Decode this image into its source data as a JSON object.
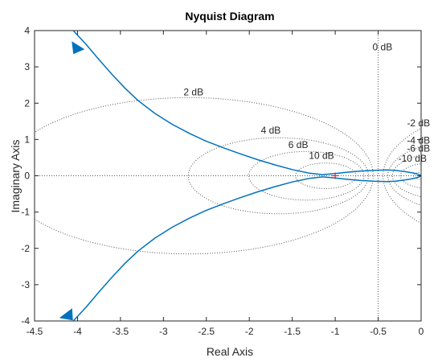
{
  "chart_data": {
    "type": "line",
    "title": "Nyquist Diagram",
    "xlabel": "Real Axis",
    "ylabel": "Imaginary Axis",
    "xlim": [
      -4.5,
      0
    ],
    "ylim": [
      -4,
      4
    ],
    "xticks": [
      -4.5,
      -4,
      -3.5,
      -3,
      -2.5,
      -2,
      -1.5,
      -1,
      -0.5,
      0
    ],
    "xtick_labels": [
      "-4.5",
      "-4",
      "-3.5",
      "-3",
      "-2.5",
      "-2",
      "-1.5",
      "-1",
      "-0.5",
      "0"
    ],
    "yticks": [
      -4,
      -3,
      -2,
      -1,
      0,
      1,
      2,
      3,
      4
    ],
    "ytick_labels": [
      "-4",
      "-3",
      "-2",
      "-1",
      "0",
      "1",
      "2",
      "3",
      "4"
    ],
    "grid": "M-circles (dotted)",
    "colors": {
      "curve": "#0072bd",
      "grid": "#555555",
      "critical_point": "#ff0000",
      "axes": "#262626"
    },
    "critical_point": {
      "x": -1,
      "y": 0
    },
    "m_circle_labels": [
      {
        "label": "0 dB",
        "x": -0.45,
        "y": 3.55
      },
      {
        "label": "2 dB",
        "x": -2.65,
        "y": 2.3
      },
      {
        "label": "4 dB",
        "x": -1.75,
        "y": 1.25
      },
      {
        "label": "6 dB",
        "x": -1.43,
        "y": 0.85
      },
      {
        "label": "10 dB",
        "x": -1.16,
        "y": 0.55
      },
      {
        "label": "-2 dB",
        "x": -0.03,
        "y": 1.45
      },
      {
        "label": "-4 dB",
        "x": -0.03,
        "y": 0.98
      },
      {
        "label": "-6 dB",
        "x": -0.03,
        "y": 0.75
      },
      {
        "label": "-10 dB",
        "x": -0.1,
        "y": 0.48
      }
    ],
    "series": [
      {
        "x": [
          -4.05,
          -3.9,
          -3.75,
          -3.6,
          -3.45,
          -3.3,
          -3.1,
          -2.9,
          -2.7,
          -2.5,
          -2.3,
          -2.1,
          -1.9,
          -1.7,
          -1.5,
          -1.3,
          -1.15,
          -1.0,
          -0.85,
          -0.7,
          -0.55,
          -0.4,
          -0.3,
          -0.2,
          -0.1,
          -0.03,
          0
        ],
        "y": [
          4.0,
          3.62,
          3.2,
          2.8,
          2.42,
          2.08,
          1.72,
          1.42,
          1.17,
          0.95,
          0.77,
          0.6,
          0.44,
          0.3,
          0.17,
          0.07,
          0.03,
          0.06,
          0.1,
          0.13,
          0.15,
          0.16,
          0.15,
          0.12,
          0.08,
          0.04,
          0
        ]
      },
      {
        "x": [
          -4.05,
          -3.9,
          -3.75,
          -3.6,
          -3.45,
          -3.3,
          -3.1,
          -2.9,
          -2.7,
          -2.5,
          -2.3,
          -2.1,
          -1.9,
          -1.7,
          -1.5,
          -1.3,
          -1.15,
          -1.0,
          -0.85,
          -0.7,
          -0.55,
          -0.4,
          -0.3,
          -0.2,
          -0.1,
          -0.03,
          0
        ],
        "y": [
          -4.0,
          -3.62,
          -3.2,
          -2.8,
          -2.42,
          -2.08,
          -1.72,
          -1.42,
          -1.17,
          -0.95,
          -0.77,
          -0.6,
          -0.44,
          -0.3,
          -0.17,
          -0.07,
          -0.03,
          -0.06,
          -0.1,
          -0.13,
          -0.15,
          -0.16,
          -0.15,
          -0.12,
          -0.08,
          -0.04,
          0
        ]
      }
    ],
    "arrows": [
      {
        "x": -4.03,
        "y": 3.55,
        "direction": "toward-origin"
      },
      {
        "x": -4.1,
        "y": -3.85,
        "direction": "away-from-origin"
      }
    ]
  }
}
